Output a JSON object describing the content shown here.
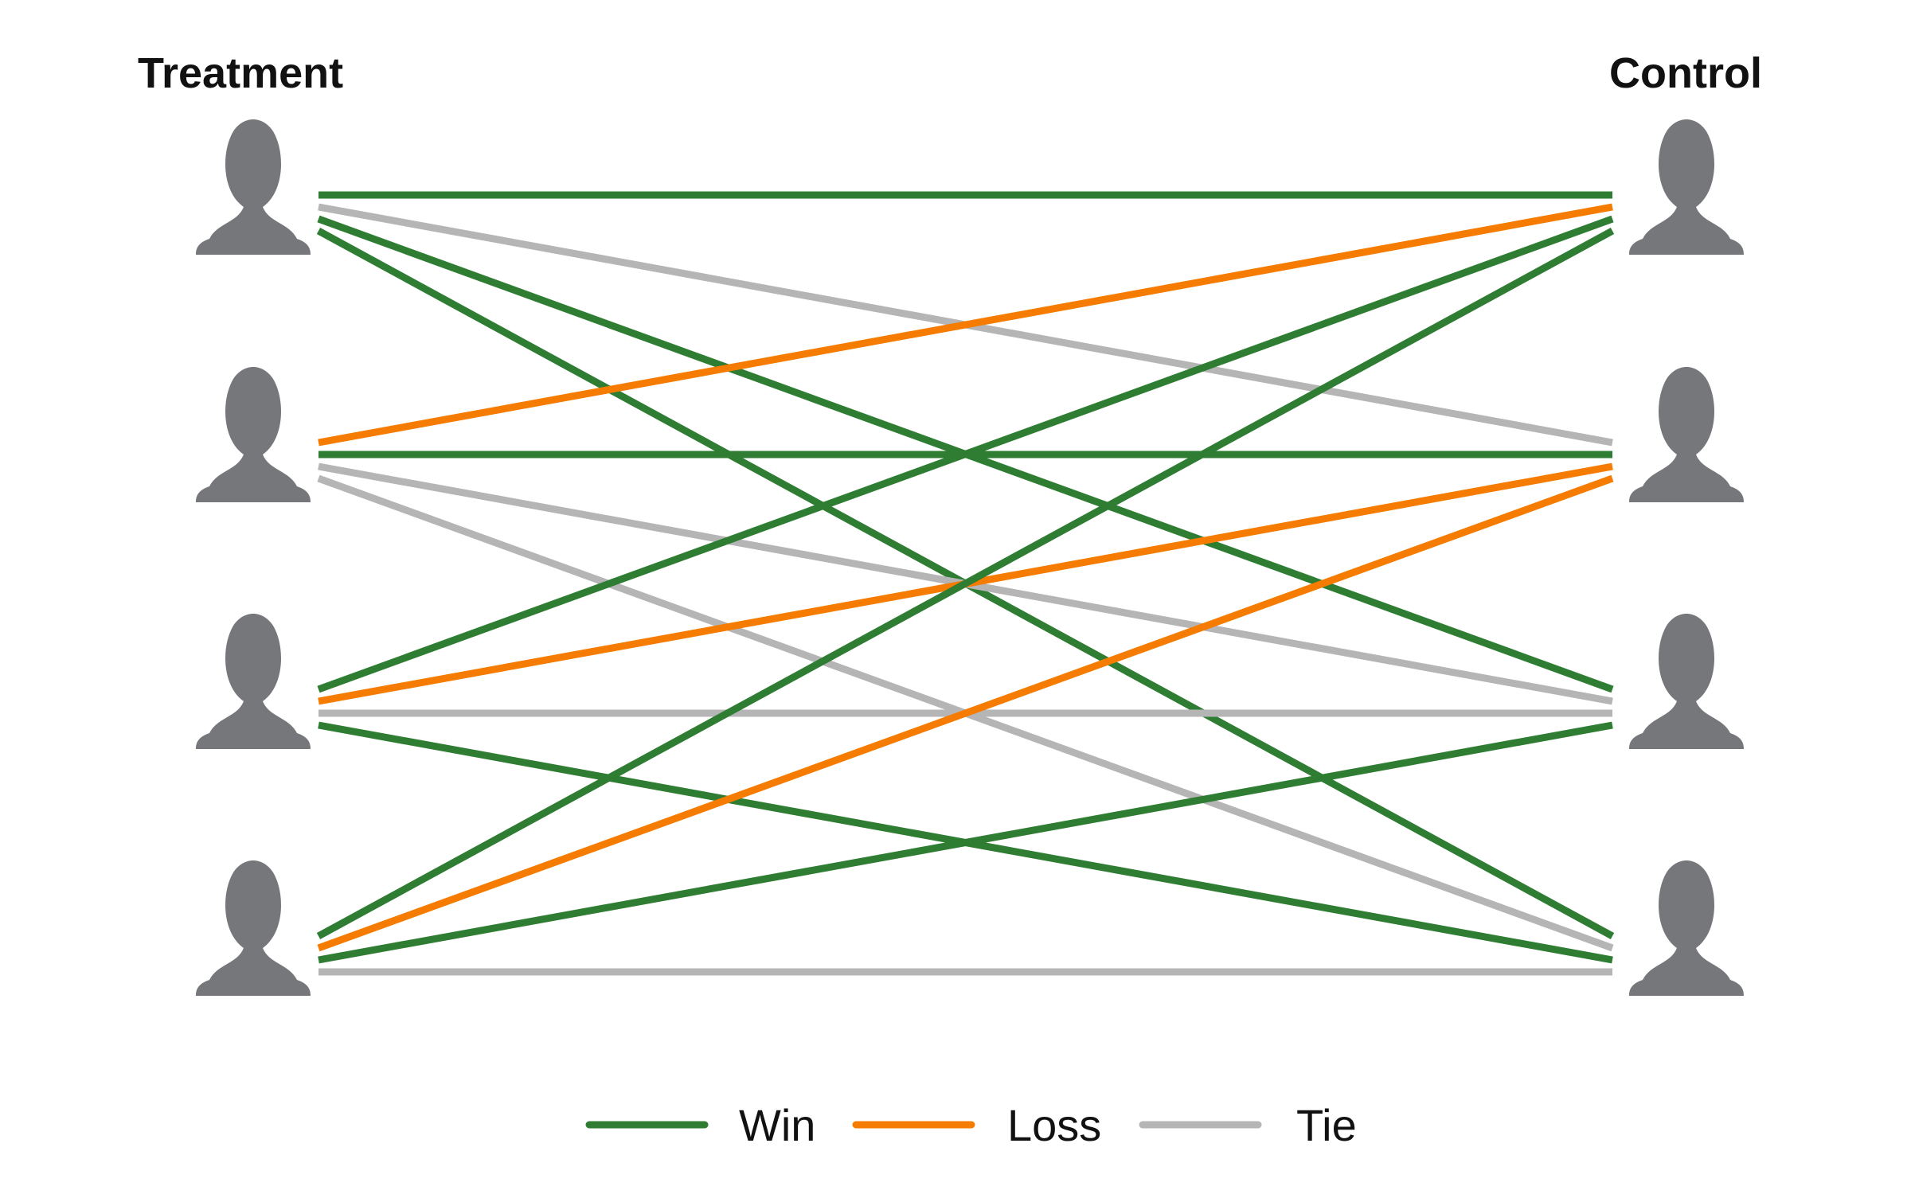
{
  "groups": {
    "left_title": "Treatment",
    "right_title": "Control"
  },
  "participants": {
    "treatment": [
      "person-icon",
      "person-icon",
      "person-icon",
      "person-icon"
    ],
    "control": [
      "person-icon",
      "person-icon",
      "person-icon",
      "person-icon"
    ]
  },
  "outcome_colors": {
    "win": "#2e7d32",
    "loss": "#f57c00",
    "tie": "#b5b5b5"
  },
  "comparisons": [
    {
      "treatment": 1,
      "control": 1,
      "outcome": "win"
    },
    {
      "treatment": 1,
      "control": 2,
      "outcome": "tie"
    },
    {
      "treatment": 1,
      "control": 3,
      "outcome": "win"
    },
    {
      "treatment": 1,
      "control": 4,
      "outcome": "win"
    },
    {
      "treatment": 2,
      "control": 1,
      "outcome": "loss"
    },
    {
      "treatment": 2,
      "control": 2,
      "outcome": "win"
    },
    {
      "treatment": 2,
      "control": 3,
      "outcome": "tie"
    },
    {
      "treatment": 2,
      "control": 4,
      "outcome": "tie"
    },
    {
      "treatment": 3,
      "control": 1,
      "outcome": "win"
    },
    {
      "treatment": 3,
      "control": 2,
      "outcome": "loss"
    },
    {
      "treatment": 3,
      "control": 3,
      "outcome": "tie"
    },
    {
      "treatment": 3,
      "control": 4,
      "outcome": "win"
    },
    {
      "treatment": 4,
      "control": 1,
      "outcome": "win"
    },
    {
      "treatment": 4,
      "control": 2,
      "outcome": "loss"
    },
    {
      "treatment": 4,
      "control": 3,
      "outcome": "win"
    },
    {
      "treatment": 4,
      "control": 4,
      "outcome": "tie"
    }
  ],
  "legend": [
    {
      "key": "win",
      "label": "Win"
    },
    {
      "key": "loss",
      "label": "Loss"
    },
    {
      "key": "tie",
      "label": "Tie"
    }
  ]
}
